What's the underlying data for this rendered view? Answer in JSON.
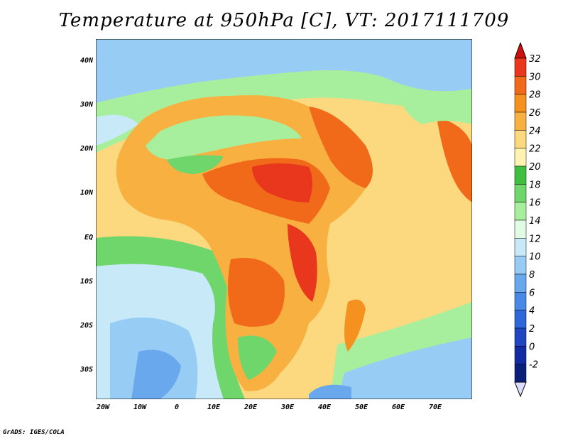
{
  "title": "Temperature at 950hPa [C], VT: 2017111709",
  "credit": "GrADS: IGES/COLA",
  "map": {
    "lon_range": [
      -22,
      80
    ],
    "lat_range": [
      -37,
      45
    ],
    "lon_ticks": [
      "20W",
      "10W",
      "0",
      "10E",
      "20E",
      "30E",
      "40E",
      "50E",
      "60E",
      "70E"
    ],
    "lat_ticks": [
      "40N",
      "30N",
      "20N",
      "10N",
      "EQ",
      "10S",
      "20S",
      "30S"
    ]
  },
  "colorbar": {
    "labels": [
      "32",
      "30",
      "28",
      "26",
      "24",
      "22",
      "20",
      "18",
      "16",
      "14",
      "12",
      "10",
      "8",
      "6",
      "4",
      "2",
      "0",
      "-2"
    ],
    "colors": [
      "#e8371c",
      "#f06a1a",
      "#f5921f",
      "#f8b140",
      "#fcd97e",
      "#fff3b2",
      "#3fbf3f",
      "#6ed66b",
      "#a8ef9d",
      "#e2fbe4",
      "#c7e9f8",
      "#97ccf4",
      "#6aa8ed",
      "#4a88e6",
      "#2f66d8",
      "#1f46c0",
      "#122ba1",
      "#0a1f7a"
    ],
    "over_color": "#d0100c",
    "under_color": "#dcdcff"
  }
}
